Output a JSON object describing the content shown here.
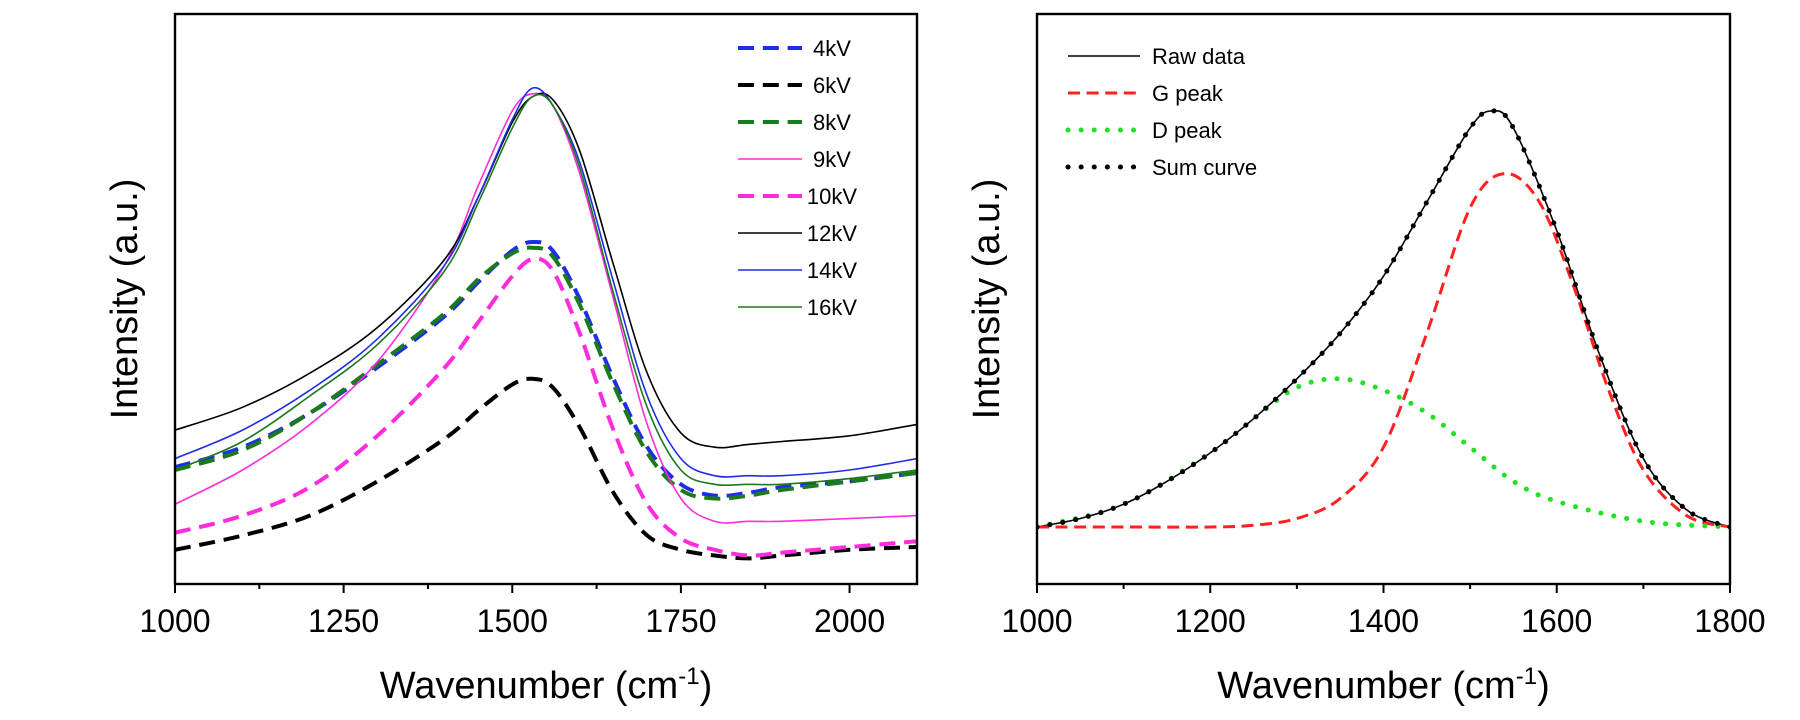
{
  "chart_data": [
    {
      "type": "line",
      "xlabel": "Wavenumber (cm",
      "xlabel_sup": "-1",
      "xlabel_end": ")",
      "ylabel": "Intensity (a.u.)",
      "xlim": [
        1000,
        2100
      ],
      "ylim": [
        0,
        1
      ],
      "xticks": [
        "1000",
        "1250",
        "1500",
        "1750",
        "2000"
      ],
      "legend_position": "top-right",
      "series": [
        {
          "name": "4kV",
          "color": "#1f2ee6",
          "style": "dashed",
          "width": 4,
          "x": [
            1000,
            1100,
            1200,
            1300,
            1400,
            1450,
            1500,
            1530,
            1560,
            1600,
            1650,
            1700,
            1750,
            1800,
            1850,
            1900,
            2000,
            2100
          ],
          "y": [
            0.205,
            0.24,
            0.3,
            0.38,
            0.47,
            0.53,
            0.585,
            0.6,
            0.585,
            0.5,
            0.36,
            0.24,
            0.175,
            0.155,
            0.16,
            0.17,
            0.18,
            0.195
          ]
        },
        {
          "name": "6kV",
          "color": "#000000",
          "style": "dashed",
          "width": 4,
          "x": [
            1000,
            1100,
            1200,
            1300,
            1400,
            1450,
            1500,
            1530,
            1560,
            1600,
            1650,
            1700,
            1750,
            1800,
            1850,
            1900,
            2000,
            2100
          ],
          "y": [
            0.06,
            0.085,
            0.12,
            0.18,
            0.255,
            0.305,
            0.35,
            0.36,
            0.345,
            0.275,
            0.16,
            0.085,
            0.06,
            0.05,
            0.045,
            0.05,
            0.06,
            0.065
          ]
        },
        {
          "name": "8kV",
          "color": "#1b7a1b",
          "style": "dashed",
          "width": 4,
          "x": [
            1000,
            1100,
            1200,
            1300,
            1400,
            1450,
            1500,
            1530,
            1560,
            1600,
            1650,
            1700,
            1750,
            1800,
            1850,
            1900,
            2000,
            2100
          ],
          "y": [
            0.2,
            0.235,
            0.3,
            0.385,
            0.475,
            0.535,
            0.58,
            0.59,
            0.575,
            0.49,
            0.35,
            0.23,
            0.165,
            0.15,
            0.155,
            0.165,
            0.18,
            0.195
          ]
        },
        {
          "name": "9kV",
          "color": "#ff2bdc",
          "style": "solid",
          "width": 1.6,
          "x": [
            1000,
            1100,
            1200,
            1300,
            1400,
            1450,
            1500,
            1530,
            1560,
            1600,
            1650,
            1700,
            1750,
            1800,
            1850,
            1900,
            2000,
            2100
          ],
          "y": [
            0.14,
            0.2,
            0.28,
            0.39,
            0.56,
            0.7,
            0.83,
            0.86,
            0.84,
            0.72,
            0.5,
            0.28,
            0.15,
            0.11,
            0.11,
            0.11,
            0.115,
            0.12
          ]
        },
        {
          "name": "10kV",
          "color": "#ff2bdc",
          "style": "dashed",
          "width": 4,
          "x": [
            1000,
            1100,
            1200,
            1300,
            1400,
            1450,
            1500,
            1530,
            1560,
            1600,
            1650,
            1700,
            1750,
            1800,
            1850,
            1900,
            2000,
            2100
          ],
          "y": [
            0.09,
            0.12,
            0.17,
            0.26,
            0.38,
            0.46,
            0.54,
            0.57,
            0.55,
            0.44,
            0.27,
            0.14,
            0.08,
            0.06,
            0.05,
            0.055,
            0.065,
            0.075
          ]
        },
        {
          "name": "12kV",
          "color": "#000000",
          "style": "solid",
          "width": 1.6,
          "x": [
            1000,
            1100,
            1200,
            1300,
            1400,
            1450,
            1500,
            1530,
            1560,
            1600,
            1650,
            1700,
            1750,
            1800,
            1850,
            1900,
            2000,
            2100
          ],
          "y": [
            0.27,
            0.31,
            0.37,
            0.45,
            0.57,
            0.68,
            0.81,
            0.855,
            0.85,
            0.76,
            0.56,
            0.37,
            0.265,
            0.24,
            0.245,
            0.25,
            0.26,
            0.28
          ]
        },
        {
          "name": "14kV",
          "color": "#1f2ee6",
          "style": "solid",
          "width": 1.6,
          "x": [
            1000,
            1100,
            1200,
            1300,
            1400,
            1450,
            1500,
            1530,
            1560,
            1600,
            1650,
            1700,
            1750,
            1800,
            1850,
            1900,
            2000,
            2100
          ],
          "y": [
            0.22,
            0.27,
            0.34,
            0.43,
            0.56,
            0.68,
            0.815,
            0.87,
            0.84,
            0.74,
            0.53,
            0.33,
            0.22,
            0.19,
            0.19,
            0.19,
            0.2,
            0.22
          ]
        },
        {
          "name": "16kV",
          "color": "#1b7a1b",
          "style": "solid",
          "width": 1.6,
          "x": [
            1000,
            1100,
            1200,
            1300,
            1400,
            1450,
            1500,
            1530,
            1560,
            1600,
            1650,
            1700,
            1750,
            1800,
            1850,
            1900,
            2000,
            2100
          ],
          "y": [
            0.2,
            0.25,
            0.33,
            0.42,
            0.55,
            0.67,
            0.8,
            0.855,
            0.84,
            0.73,
            0.51,
            0.31,
            0.2,
            0.175,
            0.175,
            0.175,
            0.185,
            0.2
          ]
        }
      ]
    },
    {
      "type": "line",
      "xlabel": "Wavenumber (cm",
      "xlabel_sup": "-1",
      "xlabel_end": ")",
      "ylabel": "Intensity (a.u.)",
      "xlim": [
        1000,
        1800
      ],
      "ylim": [
        0,
        1
      ],
      "xticks": [
        "1000",
        "1200",
        "1400",
        "1600",
        "1800"
      ],
      "legend_position": "top-left",
      "series": [
        {
          "name": "Raw data",
          "color": "#000000",
          "style": "solid",
          "width": 1.6,
          "x": [
            1000,
            1050,
            1100,
            1150,
            1200,
            1250,
            1300,
            1350,
            1400,
            1450,
            1500,
            1525,
            1550,
            1600,
            1650,
            1700,
            1750,
            1800
          ],
          "y": [
            0.1,
            0.115,
            0.14,
            0.18,
            0.23,
            0.29,
            0.36,
            0.44,
            0.54,
            0.67,
            0.8,
            0.83,
            0.8,
            0.62,
            0.4,
            0.22,
            0.13,
            0.1
          ]
        },
        {
          "name": "G peak",
          "color": "#ff2020",
          "style": "dashed",
          "width": 3,
          "x": [
            1000,
            1100,
            1200,
            1250,
            1300,
            1350,
            1400,
            1450,
            1500,
            1540,
            1580,
            1620,
            1660,
            1700,
            1750,
            1800
          ],
          "y": [
            0.1,
            0.1,
            0.1,
            0.103,
            0.115,
            0.15,
            0.24,
            0.44,
            0.66,
            0.72,
            0.67,
            0.52,
            0.34,
            0.2,
            0.12,
            0.1
          ]
        },
        {
          "name": "D peak",
          "color": "#22e022",
          "style": "dotted",
          "width": 5,
          "x": [
            1000,
            1100,
            1200,
            1250,
            1300,
            1350,
            1400,
            1450,
            1500,
            1550,
            1600,
            1700,
            1800
          ],
          "y": [
            0.1,
            0.14,
            0.23,
            0.29,
            0.345,
            0.36,
            0.34,
            0.3,
            0.24,
            0.18,
            0.145,
            0.11,
            0.1
          ]
        },
        {
          "name": "Sum curve",
          "color": "#000000",
          "style": "dotted",
          "width": 5,
          "x": [
            1000,
            1050,
            1100,
            1150,
            1200,
            1250,
            1300,
            1350,
            1400,
            1450,
            1500,
            1525,
            1550,
            1600,
            1650,
            1700,
            1750,
            1800
          ],
          "y": [
            0.1,
            0.115,
            0.14,
            0.18,
            0.23,
            0.29,
            0.36,
            0.44,
            0.54,
            0.67,
            0.8,
            0.83,
            0.8,
            0.62,
            0.4,
            0.22,
            0.13,
            0.1
          ]
        }
      ]
    }
  ]
}
